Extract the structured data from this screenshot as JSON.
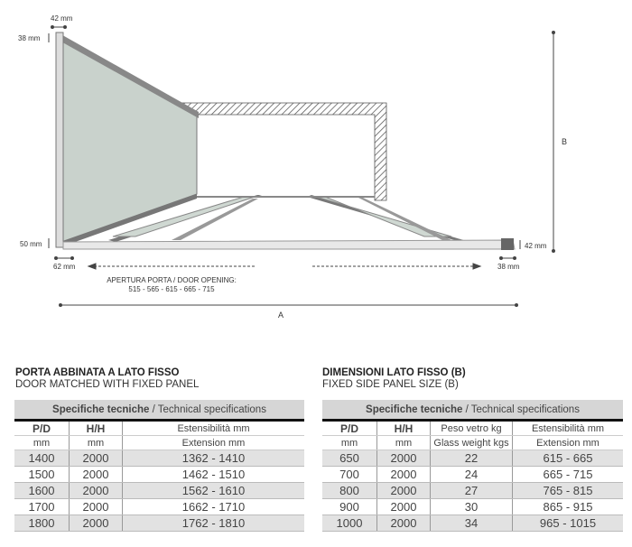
{
  "diagram": {
    "dim_top_width": "42 mm",
    "dim_top_height": "38 mm",
    "dim_bottom_left_height": "50 mm",
    "dim_bottom_left_width": "62 mm",
    "dim_bottom_right_height": "42 mm",
    "dim_bottom_right_width": "38 mm",
    "door_opening_label": "APERTURA PORTA / DOOR OPENING:",
    "door_opening_values": "515 - 565 - 615 - 665 - 715",
    "label_a": "A",
    "label_b": "B"
  },
  "left_table": {
    "title": "PORTA ABBINATA A LATO FISSO",
    "subtitle": "DOOR MATCHED WITH FIXED PANEL",
    "header_bold": "Specifiche tecniche",
    "header_rest": " / Technical specifications",
    "col_pd": "P/D",
    "col_hh": "H/H",
    "col_ext_it": "Estensibilità mm",
    "col_ext_en": "Extension mm",
    "unit": "mm",
    "rows": [
      [
        "1400",
        "2000",
        "1362 - 1410"
      ],
      [
        "1500",
        "2000",
        "1462 - 1510"
      ],
      [
        "1600",
        "2000",
        "1562 - 1610"
      ],
      [
        "1700",
        "2000",
        "1662 - 1710"
      ],
      [
        "1800",
        "2000",
        "1762 - 1810"
      ]
    ]
  },
  "right_table": {
    "title": "DIMENSIONI LATO FISSO (B)",
    "subtitle": "FIXED SIDE PANEL SIZE (B)",
    "header_bold": "Specifiche tecniche",
    "header_rest": " / Technical specifications",
    "col_pd": "P/D",
    "col_hh": "H/H",
    "col_weight_it": "Peso vetro kg",
    "col_weight_en": "Glass weight kgs",
    "col_ext_it": "Estensibilità mm",
    "col_ext_en": "Extension mm",
    "unit": "mm",
    "rows": [
      [
        "650",
        "2000",
        "22",
        "615 - 665"
      ],
      [
        "700",
        "2000",
        "24",
        "665 - 715"
      ],
      [
        "800",
        "2000",
        "27",
        "765 - 815"
      ],
      [
        "900",
        "2000",
        "30",
        "865 - 915"
      ],
      [
        "1000",
        "2000",
        "34",
        "965 - 1015"
      ]
    ]
  }
}
